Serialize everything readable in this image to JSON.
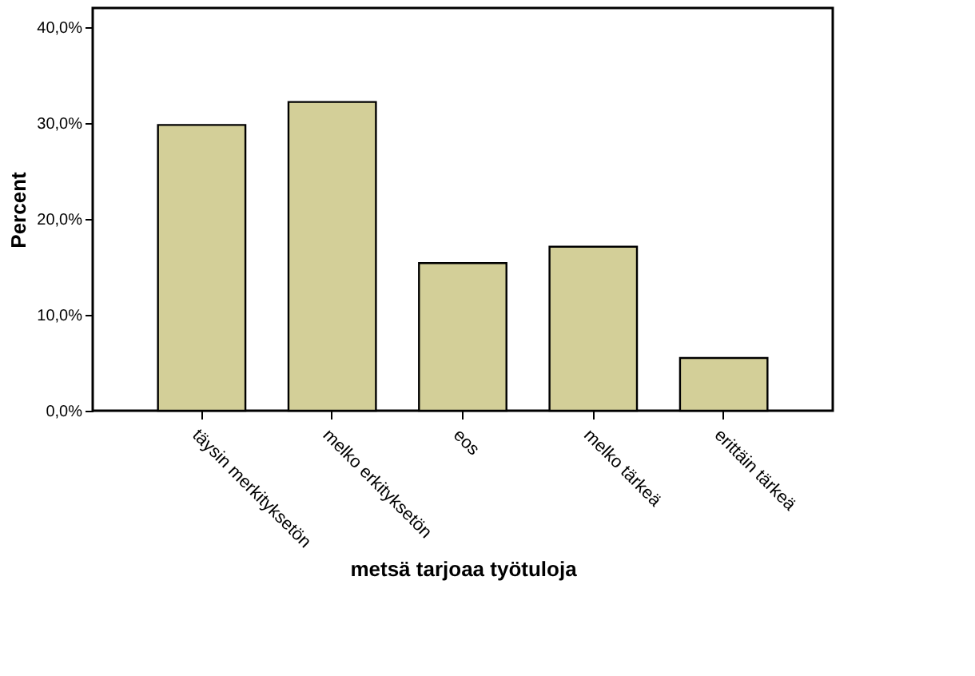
{
  "chart_data": {
    "type": "bar",
    "xlabel": "metsä tarjoaa työtuloja",
    "ylabel": "Percent",
    "categories": [
      "täysin merkityksetön",
      "melko erkityksetön",
      "eos",
      "melko tärkeä",
      "erittäin tärkeä"
    ],
    "values": [
      29.8,
      32.2,
      15.4,
      17.1,
      5.5
    ],
    "color": "#d3cf98",
    "ylim": [
      0,
      42
    ],
    "yticks": [
      {
        "value": 0,
        "label": "0,0%"
      },
      {
        "value": 10,
        "label": "10,0%"
      },
      {
        "value": 20,
        "label": "20,0%"
      },
      {
        "value": 30,
        "label": "30,0%"
      },
      {
        "value": 40,
        "label": "40,0%"
      }
    ],
    "grid": false
  }
}
